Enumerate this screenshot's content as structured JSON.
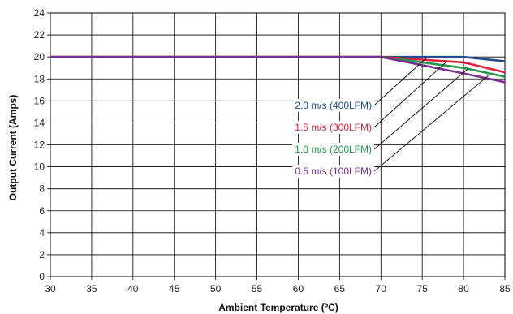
{
  "chart_data": {
    "type": "line",
    "title": "",
    "xlabel": "Ambient Temperature (ºC)",
    "ylabel": "Output Current (Amps)",
    "xlim": [
      30,
      85
    ],
    "ylim": [
      0,
      24
    ],
    "xticks": [
      30,
      35,
      40,
      45,
      50,
      55,
      60,
      65,
      70,
      75,
      80,
      85
    ],
    "yticks": [
      0,
      2,
      4,
      6,
      8,
      10,
      12,
      14,
      16,
      18,
      20,
      22,
      24
    ],
    "grid": true,
    "legend_placement": "center-right",
    "series": [
      {
        "name": "2.0 m/s (400LFM)",
        "color": "#1f4e8c",
        "x": [
          30,
          70,
          80,
          85
        ],
        "y": [
          20,
          20,
          20,
          19.6
        ]
      },
      {
        "name": "1.5 m/s (300LFM)",
        "color": "#e0203a",
        "x": [
          30,
          70,
          80,
          85
        ],
        "y": [
          20,
          20,
          19.5,
          18.6
        ]
      },
      {
        "name": "1.0 m/s (200LFM)",
        "color": "#1f9a4a",
        "x": [
          30,
          70,
          80,
          85
        ],
        "y": [
          20,
          20,
          19.0,
          18.2
        ]
      },
      {
        "name": "0.5 m/s (100LFM)",
        "color": "#7b2d90",
        "x": [
          30,
          70,
          80,
          85
        ],
        "y": [
          20,
          20,
          18.5,
          17.7
        ]
      }
    ],
    "leader_targets": [
      {
        "x": 75.5,
        "y": 19.9
      },
      {
        "x": 78.0,
        "y": 19.6
      },
      {
        "x": 80.5,
        "y": 18.9
      },
      {
        "x": 83.0,
        "y": 18.3
      }
    ]
  }
}
